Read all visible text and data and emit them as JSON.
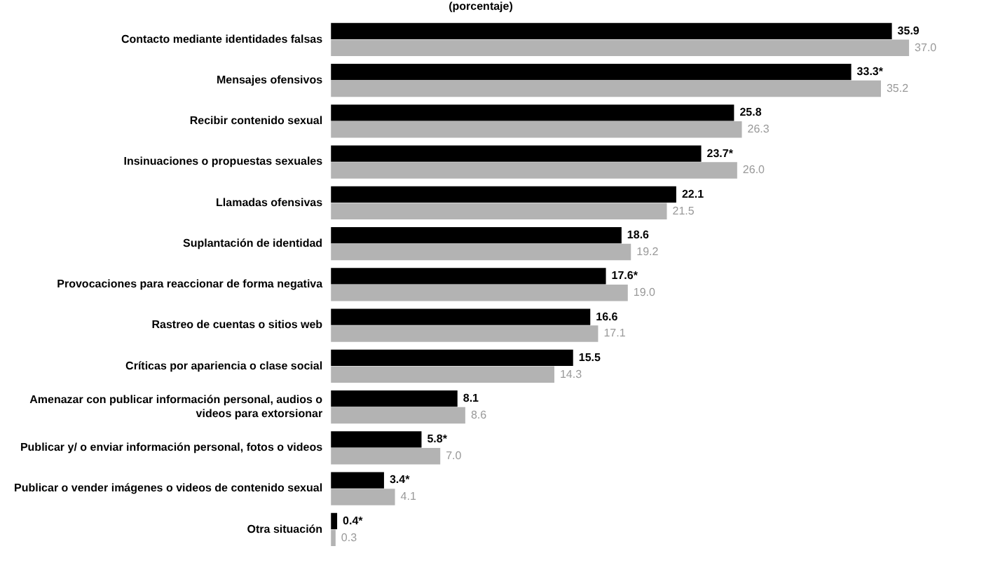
{
  "chart_data": {
    "type": "bar",
    "orientation": "horizontal",
    "title": "(porcentaje)",
    "categories": [
      "Contacto mediante identidades falsas",
      "Mensajes ofensivos",
      "Recibir contenido sexual",
      "Insinuaciones o propuestas sexuales",
      "Llamadas ofensivas",
      "Suplantación de identidad",
      "Provocaciones para reaccionar de forma negativa",
      "Rastreo de cuentas o sitios web",
      "Críticas por apariencia o clase social",
      "Amenazar con publicar información personal, audios o videos para extorsionar",
      "Publicar y/ o enviar información personal, fotos o videos",
      "Publicar o vender imágenes o videos de contenido sexual",
      "Otra situación"
    ],
    "series": [
      {
        "color": "#000000",
        "values": [
          35.9,
          33.3,
          25.8,
          23.7,
          22.1,
          18.6,
          17.6,
          16.6,
          15.5,
          8.1,
          5.8,
          3.4,
          0.4
        ],
        "value_labels": [
          "35.9",
          "33.3*",
          "25.8",
          "23.7*",
          "22.1",
          "18.6",
          "17.6*",
          "16.6",
          "15.5",
          "8.1",
          "5.8*",
          "3.4*",
          "0.4*"
        ]
      },
      {
        "color": "#b3b3b3",
        "values": [
          37.0,
          35.2,
          26.3,
          26.0,
          21.5,
          19.2,
          19.0,
          17.1,
          14.3,
          8.6,
          7.0,
          4.1,
          0.3
        ],
        "value_labels": [
          "37.0",
          "35.2",
          "26.3",
          "26.0",
          "21.5",
          "19.2",
          "19.0",
          "17.1",
          "14.3",
          "8.6",
          "7.0",
          "4.1",
          "0.3"
        ]
      }
    ],
    "grid": false,
    "legend": false
  }
}
